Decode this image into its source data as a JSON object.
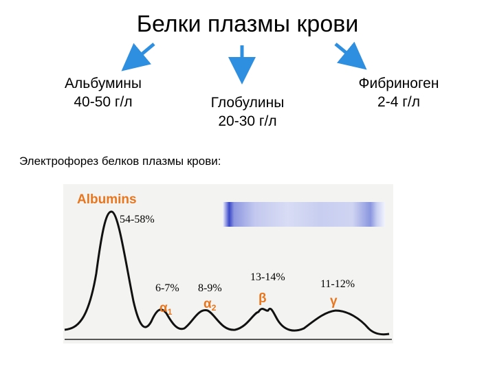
{
  "title": "Белки плазмы крови",
  "groups": {
    "albumins": {
      "name": "Альбумины",
      "value": "40-50 г/л"
    },
    "globulins": {
      "name": "Глобулины",
      "value": "20-30 г/л"
    },
    "fibrinogen": {
      "name": "Фибриноген",
      "value": "2-4 г/л"
    }
  },
  "electrophoresis_heading": "Электрофорез белков плазмы крови:",
  "figure": {
    "albumins_label": "Albumins",
    "fractions": [
      {
        "symbol": "α",
        "subscript": "1",
        "percent": "6-7%"
      },
      {
        "symbol": "α",
        "subscript": "2",
        "percent": "8-9%"
      },
      {
        "symbol": "β",
        "subscript": "",
        "percent": "13-14%"
      },
      {
        "symbol": "γ",
        "subscript": "",
        "percent": "11-12%"
      }
    ],
    "albumins_percent": "54-58%"
  },
  "colors": {
    "arrow": "#2e8fe0",
    "label_orange": "#e8761e",
    "band": "#3a48c8"
  }
}
